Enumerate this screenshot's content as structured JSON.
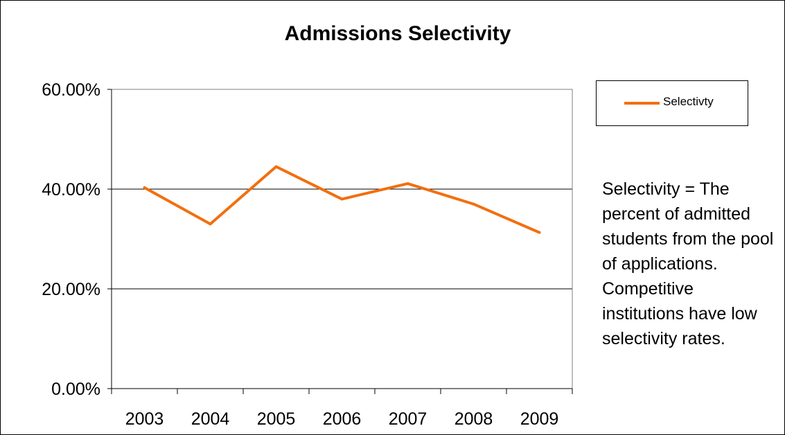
{
  "chart_data": {
    "type": "line",
    "title": "Admissions Selectivity",
    "categories": [
      "2003",
      "2004",
      "2005",
      "2006",
      "2007",
      "2008",
      "2009"
    ],
    "series": [
      {
        "name": "Selectivty",
        "values": [
          40.3,
          33.0,
          44.5,
          38.0,
          41.1,
          37.0,
          31.3
        ],
        "color": "#f26f0f"
      }
    ],
    "ylim": [
      0,
      60
    ],
    "yticks": [
      0,
      20,
      40,
      60
    ],
    "ytick_labels": [
      "0.00%",
      "20.00%",
      "40.00%",
      "60.00%"
    ],
    "grid": true,
    "legend_position": "right"
  },
  "note": "Selectivity = The percent of admitted students from the pool of applications. Competitive institutions have low selectivity rates."
}
